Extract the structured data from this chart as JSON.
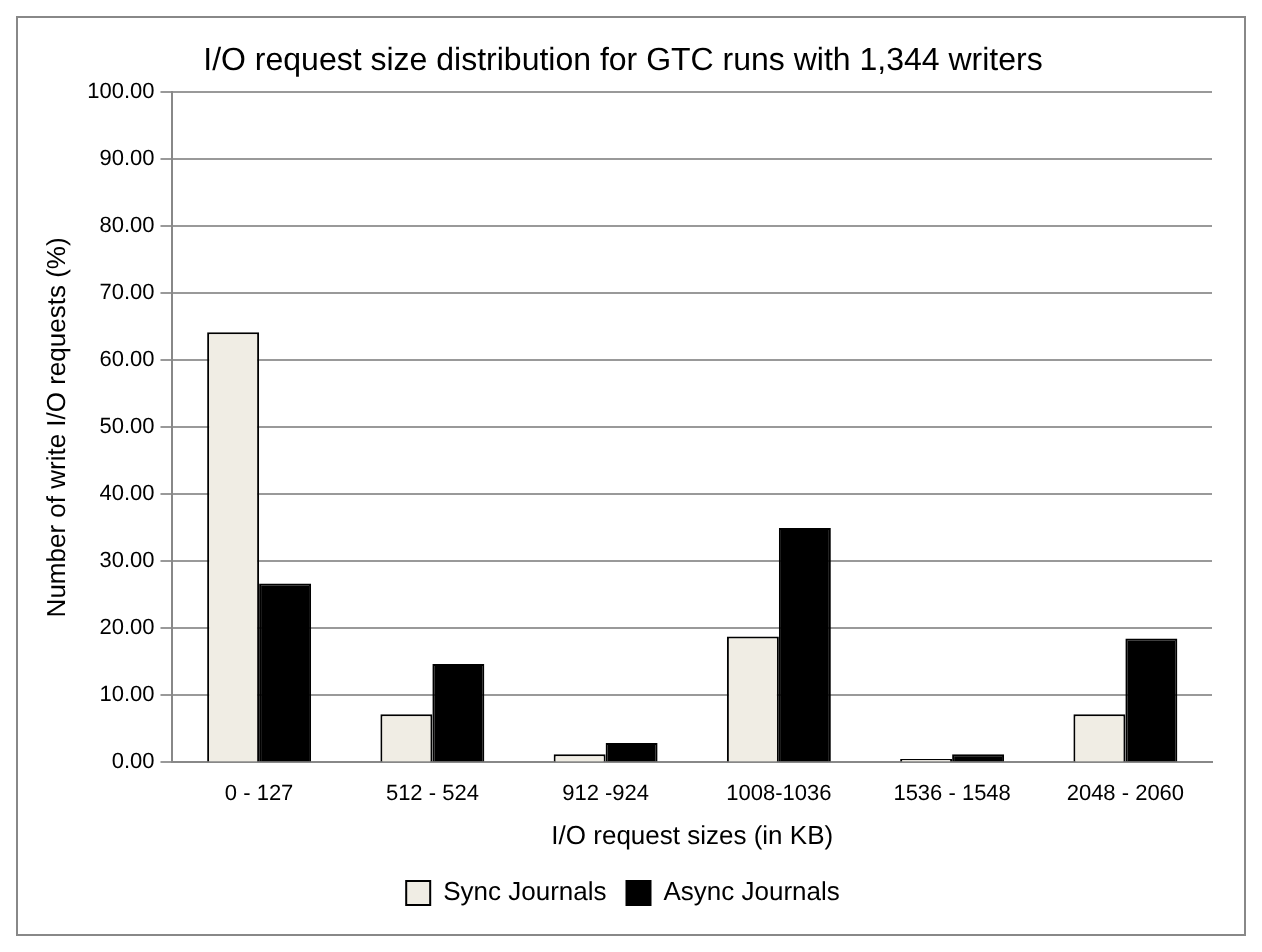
{
  "chart_data": {
    "type": "bar",
    "title": "I/O request size distribution for GTC runs with 1,344 writers",
    "xlabel": "I/O request sizes (in KB)",
    "ylabel": "Number of write I/O requests (%)",
    "categories": [
      "0 - 127",
      "512 - 524",
      "912 -924",
      "1008-1036",
      "1536 - 1548",
      "2048 - 2060"
    ],
    "series": [
      {
        "name": "Sync Journals",
        "color": "#f0ede4",
        "values": [
          64.2,
          7.2,
          1.2,
          18.8,
          0.5,
          7.2
        ]
      },
      {
        "name": "Async Journals",
        "color": "#000000",
        "values": [
          26.7,
          14.7,
          2.9,
          35.0,
          1.2,
          18.5
        ]
      }
    ],
    "ylim": [
      0,
      100
    ],
    "yticks": [
      {
        "value": 0,
        "label": "0.00"
      },
      {
        "value": 10,
        "label": "10.00"
      },
      {
        "value": 20,
        "label": "20.00"
      },
      {
        "value": 30,
        "label": "30.00"
      },
      {
        "value": 40,
        "label": "40.00"
      },
      {
        "value": 50,
        "label": "50.00"
      },
      {
        "value": 60,
        "label": "60.00"
      },
      {
        "value": 70,
        "label": "70.00"
      },
      {
        "value": 80,
        "label": "80.00"
      },
      {
        "value": 90,
        "label": "90.00"
      },
      {
        "value": 100,
        "label": "100.00"
      }
    ],
    "grid": "y",
    "legend": "bottom"
  }
}
